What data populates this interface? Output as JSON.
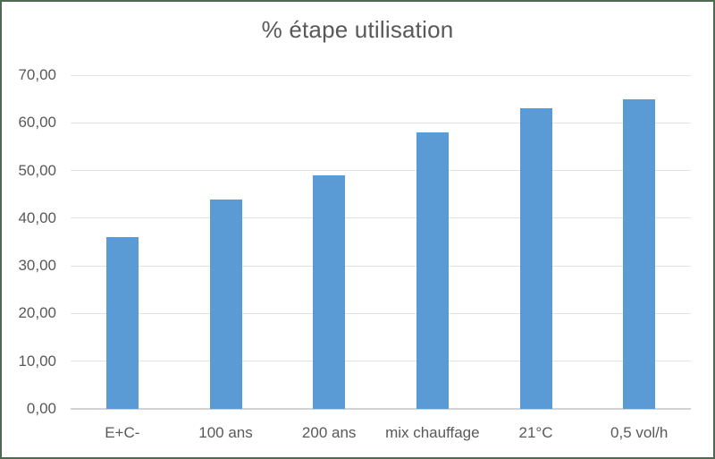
{
  "chart_data": {
    "type": "bar",
    "title": "% étape utilisation",
    "categories": [
      "E+C-",
      "100 ans",
      "200 ans",
      "mix chauffage",
      "21°C",
      "0,5 vol/h"
    ],
    "values": [
      36,
      44,
      49,
      58,
      63,
      65
    ],
    "y_tick_labels": [
      "0,00",
      "10,00",
      "20,00",
      "30,00",
      "40,00",
      "50,00",
      "60,00",
      "70,00"
    ],
    "ylim": [
      0,
      70
    ],
    "ytick_step": 10,
    "xlabel": "",
    "ylabel": "",
    "grid": "horizontal",
    "legend": "none",
    "colors": {
      "bar_fill": "#5B9BD5",
      "gridline": "#E2E2E2",
      "axis_line": "#D2D2D2",
      "text": "#595959",
      "frame_border": "#4E6B51",
      "background": "#FFFFFF"
    }
  }
}
